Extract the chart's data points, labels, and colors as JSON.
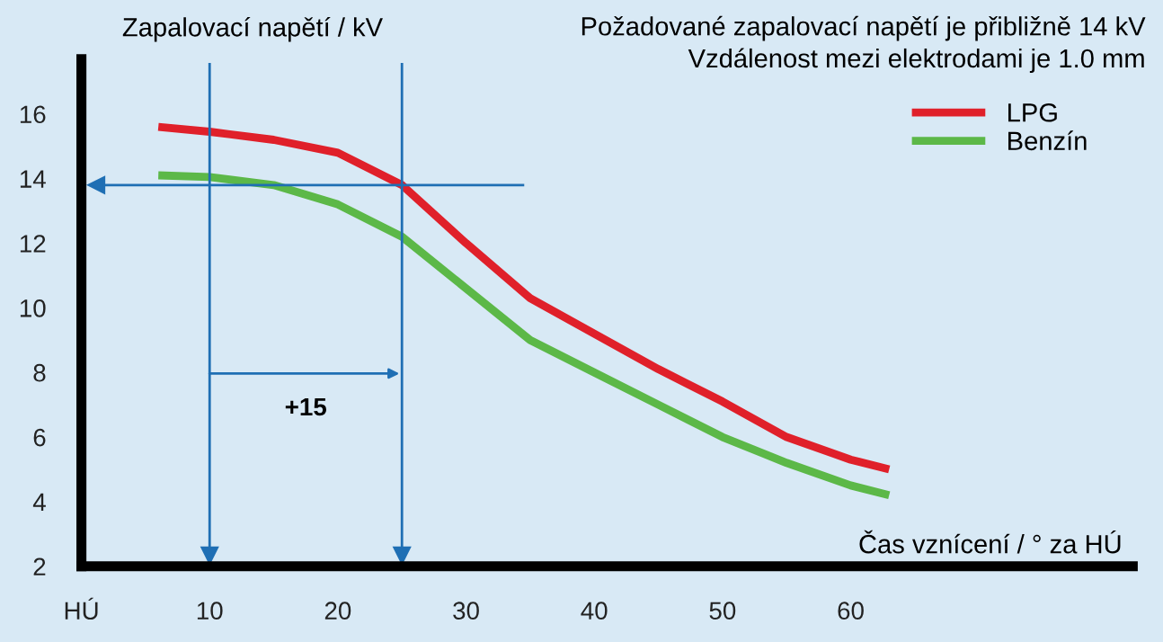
{
  "chart_data": {
    "type": "line",
    "title": "Požadované zapalovací napětí je přibližně 14 kV",
    "subtitle": "Vzdálenost mezi elektrodami je 1.0 mm",
    "xlabel": "Čas vznícení / ° za HÚ",
    "ylabel": "Zapalovací napětí / kV",
    "series": [
      {
        "name": "LPG",
        "color": "#e0202a",
        "x": [
          6,
          10,
          15,
          20,
          25,
          30,
          35,
          40,
          45,
          50,
          55,
          60,
          63
        ],
        "values": [
          15.6,
          15.45,
          15.2,
          14.8,
          13.8,
          12.0,
          10.3,
          9.2,
          8.1,
          7.1,
          6.0,
          5.3,
          5.0
        ]
      },
      {
        "name": "Benzín",
        "color": "#5cb848",
        "x": [
          6,
          10,
          15,
          20,
          25,
          30,
          35,
          40,
          45,
          50,
          55,
          60,
          63
        ],
        "values": [
          14.1,
          14.05,
          13.8,
          13.2,
          12.2,
          10.6,
          9.0,
          8.0,
          7.0,
          6.0,
          5.2,
          4.5,
          4.2
        ]
      }
    ],
    "xlim": [
      0,
      82
    ],
    "xticks": [
      {
        "value": 0,
        "label": "HÚ"
      },
      10,
      20,
      30,
      40,
      50,
      60
    ],
    "ylim": [
      2,
      17.7
    ],
    "yticks": [
      2,
      4,
      6,
      8,
      10,
      12,
      14,
      16
    ],
    "ref_lines": [
      {
        "axis": "x",
        "value": 10,
        "color": "#1f6fb4"
      },
      {
        "axis": "x",
        "value": 25,
        "color": "#1f6fb4"
      },
      {
        "axis": "y",
        "value": 13.8,
        "color": "#1f6fb4"
      }
    ],
    "annotations": [
      "+15"
    ],
    "grid": false,
    "legend": "top right",
    "marker": "none",
    "line_style": "solid"
  }
}
